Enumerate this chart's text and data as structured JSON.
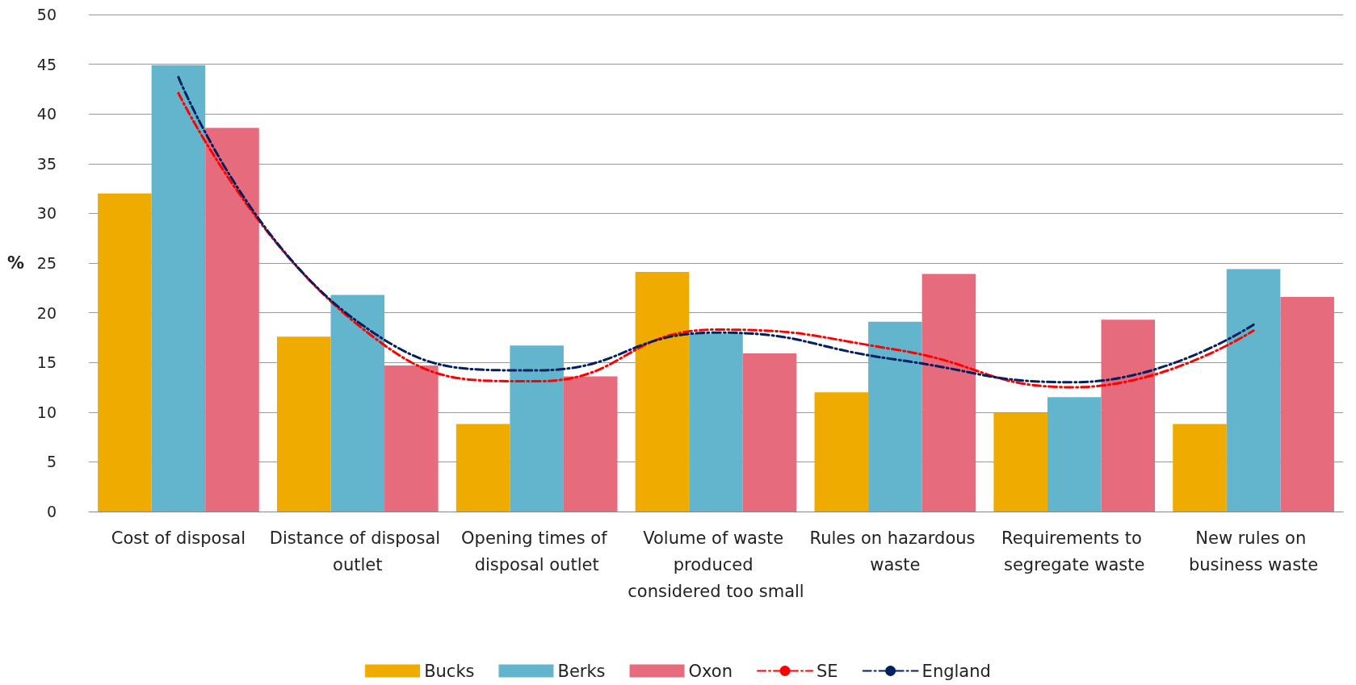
{
  "chart_data": {
    "type": "bar",
    "ylabel": "%",
    "categories": [
      "Cost of disposal",
      "Distance of disposal outlet",
      "Opening times of disposal outlet",
      "Volume of waste produced considered too small",
      "Rules on hazardous waste",
      "Requirements to segregate waste",
      "New rules on business waste"
    ],
    "series": [
      {
        "name": "Bucks",
        "color": "#f0ab00",
        "values": [
          32,
          17.6,
          8.8,
          24.1,
          12,
          9.9,
          8.8
        ]
      },
      {
        "name": "Berks",
        "color": "#62b5cc",
        "values": [
          44.9,
          21.8,
          16.7,
          17.9,
          19.1,
          11.5,
          24.4
        ]
      },
      {
        "name": "Oxon",
        "color": "#e66c7d",
        "values": [
          38.6,
          14.7,
          13.6,
          15.9,
          23.9,
          19.3,
          21.6
        ]
      },
      {
        "name": "SE",
        "type": "line",
        "color": "#ff0000",
        "line_style": "dashed",
        "values": [
          42.1,
          18.8,
          13.1,
          18.3,
          16.3,
          12.5,
          18.2
        ]
      },
      {
        "name": "England",
        "type": "line",
        "color": "#002060",
        "line_style": "dashed",
        "values": [
          43.7,
          19.1,
          14.2,
          18,
          15.3,
          13,
          18.8
        ]
      }
    ],
    "ylim": [
      0,
      50
    ],
    "yticks": [
      0,
      5,
      10,
      15,
      20,
      25,
      30,
      35,
      40,
      45,
      50
    ],
    "grid": "y",
    "legend": "bottom",
    "marker": "none"
  }
}
